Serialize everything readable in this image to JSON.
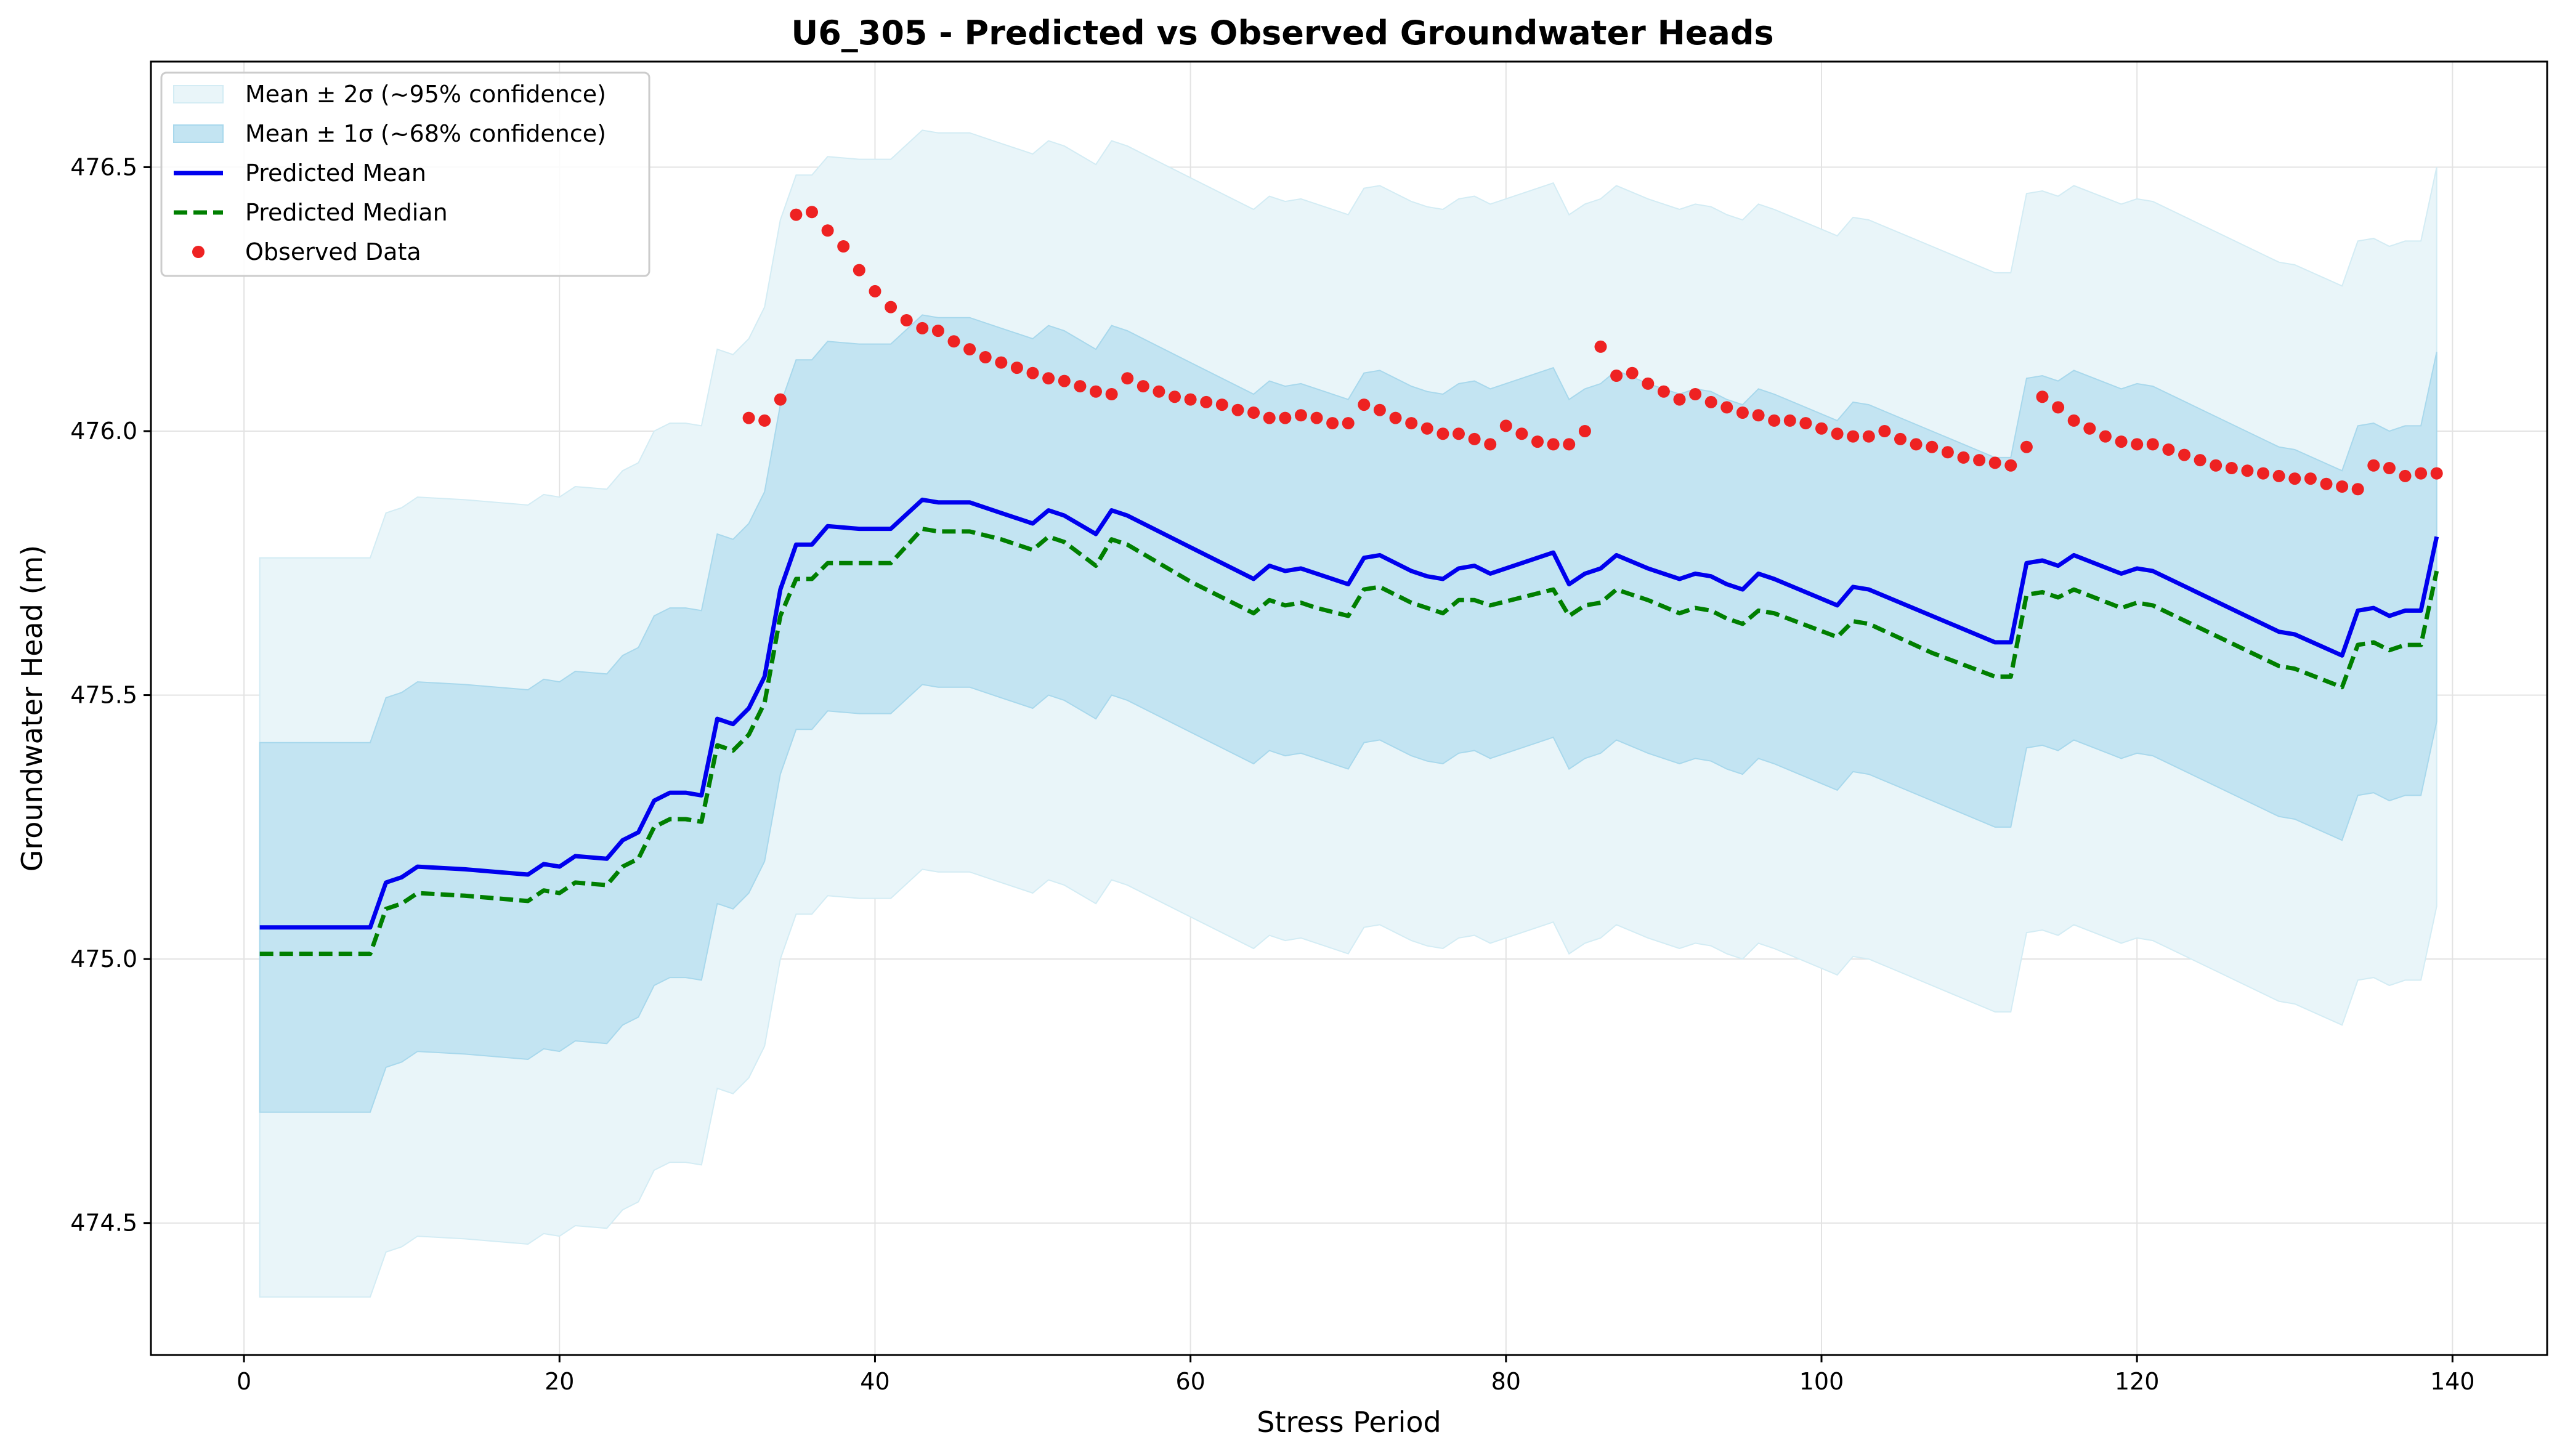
{
  "chart_data": {
    "type": "line",
    "title": "U6_305 - Predicted vs Observed Groundwater Heads",
    "xlabel": "Stress Period",
    "ylabel": "Groundwater Head (m)",
    "xlim": [
      -5.9,
      146
    ],
    "ylim": [
      474.25,
      476.7
    ],
    "x_ticks": [
      0,
      20,
      40,
      60,
      80,
      100,
      120,
      140
    ],
    "y_ticks": [
      474.5,
      475.0,
      475.5,
      476.0,
      476.5
    ],
    "x_tick_labels": [
      "0",
      "20",
      "40",
      "60",
      "80",
      "100",
      "120",
      "140"
    ],
    "y_tick_labels": [
      "474.5",
      "475.0",
      "475.5",
      "476.0",
      "476.5"
    ],
    "grid": true,
    "legend_position": "top-left",
    "legend": [
      {
        "label": "Mean ± 2σ (~95% confidence)",
        "kind": "band2"
      },
      {
        "label": "Mean ± 1σ (~68% confidence)",
        "kind": "band1"
      },
      {
        "label": "Predicted Mean",
        "kind": "mean"
      },
      {
        "label": "Predicted Median",
        "kind": "median"
      },
      {
        "label": "Observed Data",
        "kind": "observed"
      }
    ],
    "colors": {
      "band2": "#e9f5f9",
      "band2_edge": "#d3ecf4",
      "band1": "#c3e4f2",
      "band1_edge": "#a8d8ec",
      "mean": "#0000ee",
      "median": "#007f00",
      "observed": "#ee2222"
    },
    "mean_series": {
      "x": [
        1,
        5,
        8,
        9,
        10,
        11,
        14,
        18,
        19,
        20,
        21,
        23,
        24,
        25,
        26,
        27,
        28,
        29,
        30,
        31,
        32,
        33,
        34,
        35,
        36,
        37,
        39,
        41,
        43,
        44,
        46,
        48,
        50,
        51,
        52,
        54,
        55,
        56,
        58,
        60,
        64,
        65,
        66,
        67,
        68,
        70,
        71,
        72,
        74,
        75,
        76,
        77,
        78,
        79,
        83,
        84,
        85,
        86,
        87,
        89,
        91,
        92,
        93,
        94,
        95,
        96,
        97,
        101,
        102,
        103,
        107,
        111,
        112,
        113,
        114,
        115,
        116,
        119,
        120,
        121,
        129,
        130,
        133,
        134,
        135,
        136,
        137,
        138,
        139
      ],
      "values": [
        475.06,
        475.06,
        475.06,
        475.145,
        475.155,
        475.175,
        475.17,
        475.16,
        475.18,
        475.175,
        475.195,
        475.19,
        475.225,
        475.24,
        475.3,
        475.315,
        475.315,
        475.31,
        475.455,
        475.445,
        475.475,
        475.535,
        475.7,
        475.785,
        475.785,
        475.82,
        475.815,
        475.815,
        475.87,
        475.865,
        475.865,
        475.845,
        475.825,
        475.85,
        475.84,
        475.805,
        475.85,
        475.84,
        475.81,
        475.78,
        475.72,
        475.745,
        475.735,
        475.74,
        475.73,
        475.71,
        475.76,
        475.765,
        475.735,
        475.725,
        475.72,
        475.74,
        475.745,
        475.73,
        475.77,
        475.71,
        475.73,
        475.74,
        475.765,
        475.74,
        475.72,
        475.73,
        475.725,
        475.71,
        475.7,
        475.73,
        475.72,
        475.67,
        475.705,
        475.7,
        475.65,
        475.6,
        475.6,
        475.75,
        475.755,
        475.745,
        475.765,
        475.73,
        475.74,
        475.735,
        475.62,
        475.615,
        475.575,
        475.66,
        475.665,
        475.65,
        475.66,
        475.66,
        475.8
      ]
    },
    "median_series": {
      "x": [
        1,
        5,
        8,
        9,
        10,
        11,
        14,
        18,
        19,
        20,
        21,
        23,
        24,
        25,
        26,
        27,
        28,
        29,
        30,
        31,
        32,
        33,
        34,
        35,
        36,
        37,
        39,
        41,
        43,
        44,
        46,
        48,
        50,
        51,
        52,
        54,
        55,
        56,
        58,
        60,
        64,
        65,
        66,
        67,
        68,
        70,
        71,
        72,
        74,
        75,
        76,
        77,
        78,
        79,
        83,
        84,
        85,
        86,
        87,
        89,
        91,
        92,
        93,
        94,
        95,
        96,
        97,
        101,
        102,
        103,
        107,
        111,
        112,
        113,
        114,
        115,
        116,
        119,
        120,
        121,
        129,
        130,
        133,
        134,
        135,
        136,
        137,
        138,
        139
      ],
      "values": [
        475.01,
        475.01,
        475.01,
        475.095,
        475.105,
        475.125,
        475.12,
        475.11,
        475.13,
        475.125,
        475.145,
        475.14,
        475.175,
        475.19,
        475.25,
        475.265,
        475.265,
        475.26,
        475.405,
        475.395,
        475.425,
        475.485,
        475.65,
        475.72,
        475.72,
        475.75,
        475.75,
        475.75,
        475.815,
        475.81,
        475.81,
        475.795,
        475.775,
        475.8,
        475.79,
        475.745,
        475.795,
        475.785,
        475.75,
        475.715,
        475.655,
        475.68,
        475.67,
        475.675,
        475.665,
        475.65,
        475.7,
        475.705,
        475.675,
        475.665,
        475.655,
        475.68,
        475.68,
        475.67,
        475.7,
        475.65,
        475.67,
        475.675,
        475.7,
        475.68,
        475.655,
        475.665,
        475.66,
        475.645,
        475.635,
        475.66,
        475.655,
        475.61,
        475.64,
        475.635,
        475.58,
        475.535,
        475.535,
        475.69,
        475.695,
        475.685,
        475.7,
        475.665,
        475.675,
        475.67,
        475.555,
        475.55,
        475.515,
        475.595,
        475.6,
        475.585,
        475.595,
        475.595,
        475.735
      ]
    },
    "band_1sigma_halfwidth": 0.35,
    "band_2sigma_halfwidth": 0.7,
    "observed": {
      "x": [
        32,
        33,
        34,
        35,
        36,
        37,
        38,
        39,
        40,
        41,
        42,
        43,
        44,
        45,
        46,
        47,
        48,
        49,
        50,
        51,
        52,
        53,
        54,
        55,
        56,
        57,
        58,
        59,
        60,
        61,
        62,
        63,
        64,
        65,
        66,
        67,
        68,
        69,
        70,
        71,
        72,
        73,
        74,
        75,
        76,
        77,
        78,
        79,
        80,
        81,
        82,
        83,
        84,
        85,
        86,
        87,
        88,
        89,
        90,
        91,
        92,
        93,
        94,
        95,
        96,
        97,
        98,
        99,
        100,
        101,
        102,
        103,
        104,
        105,
        106,
        107,
        108,
        109,
        110,
        111,
        112,
        113,
        114,
        115,
        116,
        117,
        118,
        119,
        120,
        121,
        122,
        123,
        124,
        125,
        126,
        127,
        128,
        129,
        130,
        131,
        132,
        133,
        134,
        135,
        136,
        137,
        138,
        139
      ],
      "values": [
        476.025,
        476.02,
        476.06,
        476.41,
        476.415,
        476.38,
        476.35,
        476.305,
        476.265,
        476.235,
        476.21,
        476.195,
        476.19,
        476.17,
        476.155,
        476.14,
        476.13,
        476.12,
        476.11,
        476.1,
        476.095,
        476.085,
        476.075,
        476.07,
        476.1,
        476.085,
        476.075,
        476.065,
        476.06,
        476.055,
        476.05,
        476.04,
        476.035,
        476.025,
        476.025,
        476.03,
        476.025,
        476.015,
        476.015,
        476.05,
        476.04,
        476.025,
        476.015,
        476.005,
        475.995,
        475.995,
        475.985,
        475.975,
        476.01,
        475.995,
        475.98,
        475.975,
        475.975,
        476.0,
        476.16,
        476.105,
        476.11,
        476.09,
        476.075,
        476.06,
        476.07,
        476.055,
        476.045,
        476.035,
        476.03,
        476.02,
        476.02,
        476.015,
        476.005,
        475.995,
        475.99,
        475.99,
        476.0,
        475.985,
        475.975,
        475.97,
        475.96,
        475.95,
        475.945,
        475.94,
        475.935,
        475.97,
        476.065,
        476.045,
        476.02,
        476.005,
        475.99,
        475.98,
        475.975,
        475.975,
        475.965,
        475.955,
        475.945,
        475.935,
        475.93,
        475.925,
        475.92,
        475.915,
        475.91,
        475.91,
        475.9,
        475.895,
        475.89,
        475.935,
        475.93,
        475.915,
        475.92,
        475.92
      ]
    }
  }
}
